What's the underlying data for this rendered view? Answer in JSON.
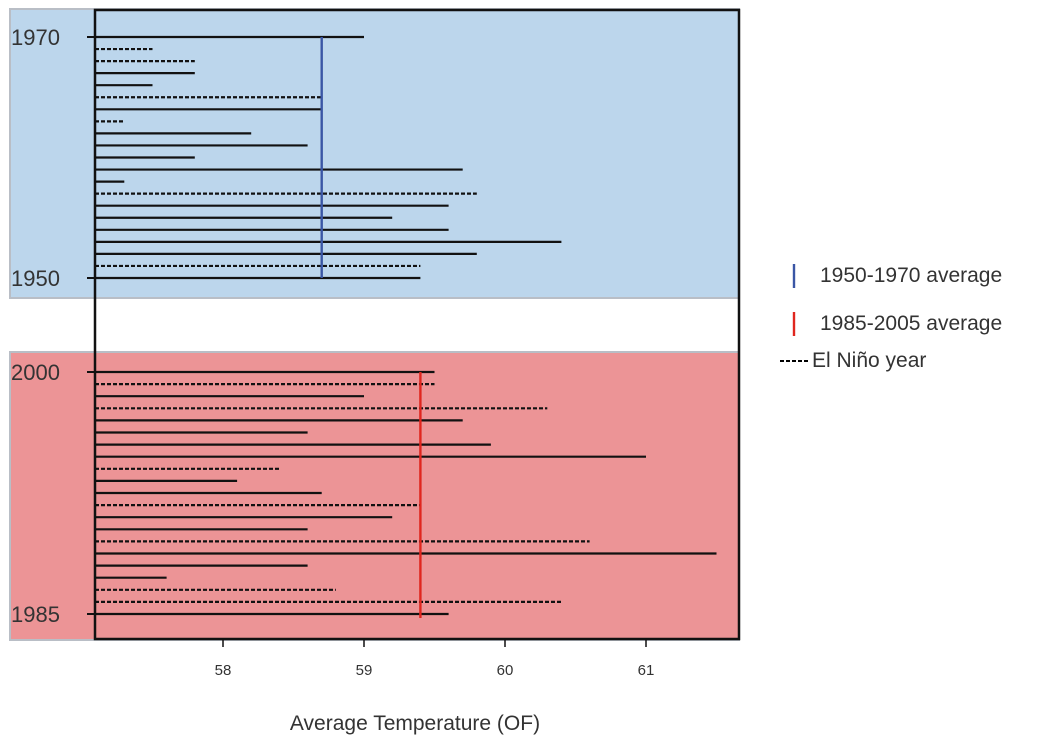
{
  "chart_data": {
    "type": "bar",
    "orientation": "horizontal",
    "xlabel": "Average Temperature (OF)",
    "xlim": [
      57.1,
      61.7
    ],
    "x_ticks": [
      "58",
      "59",
      "60",
      "61"
    ],
    "x_tick_values": [
      58,
      59,
      60,
      61
    ],
    "panels": [
      {
        "name": "1950-1970",
        "background": "#bcd6ec",
        "y_tick_labels": [
          "1970",
          "1950"
        ],
        "years": [
          1950,
          1951,
          1952,
          1953,
          1954,
          1955,
          1956,
          1957,
          1958,
          1959,
          1960,
          1961,
          1962,
          1963,
          1964,
          1965,
          1966,
          1967,
          1968,
          1969,
          1970
        ],
        "values": [
          59.4,
          59.4,
          59.8,
          60.4,
          59.6,
          59.2,
          59.6,
          59.8,
          57.3,
          59.7,
          57.8,
          58.6,
          58.2,
          57.3,
          58.7,
          58.7,
          57.5,
          57.8,
          57.8,
          57.5,
          59.0
        ],
        "el_nino": [
          false,
          true,
          false,
          false,
          false,
          false,
          false,
          true,
          false,
          false,
          false,
          false,
          false,
          true,
          false,
          true,
          false,
          false,
          true,
          true,
          false
        ],
        "average": 58.7,
        "average_color": "#3a56a5"
      },
      {
        "name": "1985-2005",
        "background": "#ec9496",
        "y_tick_labels": [
          "2000",
          "1985"
        ],
        "years": [
          1985,
          1986,
          1987,
          1988,
          1989,
          1990,
          1991,
          1992,
          1993,
          1994,
          1995,
          1996,
          1997,
          1998,
          1999,
          2000,
          2001,
          2002,
          2003,
          2004,
          2005
        ],
        "values": [
          59.6,
          60.4,
          58.8,
          57.6,
          58.6,
          61.5,
          60.6,
          58.6,
          59.2,
          59.4,
          58.7,
          58.1,
          58.4,
          61.0,
          59.9,
          58.6,
          59.7,
          60.3,
          59.0,
          59.5,
          59.5
        ],
        "el_nino": [
          false,
          true,
          true,
          false,
          false,
          false,
          true,
          false,
          false,
          true,
          false,
          false,
          true,
          false,
          false,
          false,
          false,
          true,
          false,
          true,
          false
        ],
        "average": 59.4,
        "average_color": "#e0261e"
      }
    ],
    "legend": {
      "position": "right",
      "entries": [
        {
          "label": "1950-1970 average",
          "symbol": "vertical-line",
          "color": "#3a56a5"
        },
        {
          "label": "1985-2005 average",
          "symbol": "vertical-line",
          "color": "#e0261e"
        },
        {
          "label": "El Niño year",
          "symbol": "dashed-line",
          "color": "#000000"
        }
      ]
    },
    "grid": false
  }
}
